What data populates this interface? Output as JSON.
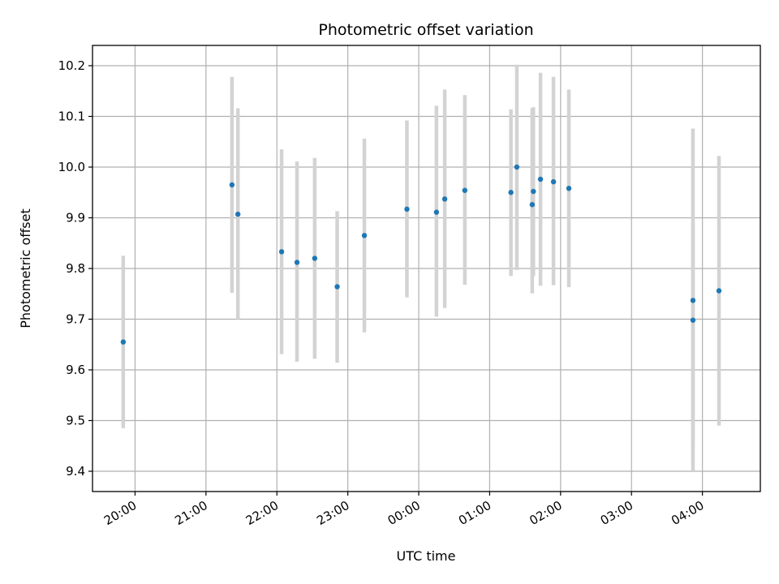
{
  "chart_data": {
    "type": "scatter",
    "title": "Photometric offset variation",
    "xlabel": "UTC time",
    "ylabel": "Photometric offset",
    "grid": true,
    "colors": {
      "point": "#1f77b4",
      "errorbar": "#d3d3d3",
      "grid": "#b0b0b0"
    },
    "x_ticks": [
      "20:00",
      "21:00",
      "22:00",
      "23:00",
      "00:00",
      "01:00",
      "02:00",
      "03:00",
      "04:00"
    ],
    "y_ticks": [
      "9.4",
      "9.5",
      "9.6",
      "9.7",
      "9.8",
      "9.9",
      "10.0",
      "10.1",
      "10.2"
    ],
    "xlim": [
      "19:24",
      "04:49"
    ],
    "ylim": [
      9.36,
      10.24
    ],
    "points": [
      {
        "x": "19:50",
        "y": 9.655,
        "err_low": 9.485,
        "err_high": 9.825
      },
      {
        "x": "21:22",
        "y": 9.965,
        "err_low": 9.752,
        "err_high": 10.178
      },
      {
        "x": "21:27",
        "y": 9.907,
        "err_low": 9.7,
        "err_high": 10.116
      },
      {
        "x": "22:04",
        "y": 9.833,
        "err_low": 9.631,
        "err_high": 10.035
      },
      {
        "x": "22:17",
        "y": 9.812,
        "err_low": 9.616,
        "err_high": 10.011
      },
      {
        "x": "22:32",
        "y": 9.82,
        "err_low": 9.622,
        "err_high": 10.018
      },
      {
        "x": "22:51",
        "y": 9.764,
        "err_low": 9.614,
        "err_high": 9.913
      },
      {
        "x": "23:14",
        "y": 9.865,
        "err_low": 9.674,
        "err_high": 10.056
      },
      {
        "x": "23:50",
        "y": 9.917,
        "err_low": 9.743,
        "err_high": 10.092
      },
      {
        "x": "00:15",
        "y": 9.911,
        "err_low": 9.705,
        "err_high": 10.121
      },
      {
        "x": "00:22",
        "y": 9.937,
        "err_low": 9.722,
        "err_high": 10.153
      },
      {
        "x": "00:39",
        "y": 9.954,
        "err_low": 9.768,
        "err_high": 10.142
      },
      {
        "x": "01:18",
        "y": 9.95,
        "err_low": 9.785,
        "err_high": 10.114
      },
      {
        "x": "01:23",
        "y": 10.0,
        "err_low": 9.797,
        "err_high": 10.202
      },
      {
        "x": "01:36",
        "y": 9.926,
        "err_low": 9.751,
        "err_high": 10.116
      },
      {
        "x": "01:37",
        "y": 9.952,
        "err_low": 9.785,
        "err_high": 10.118
      },
      {
        "x": "01:43",
        "y": 9.976,
        "err_low": 9.766,
        "err_high": 10.186
      },
      {
        "x": "01:54",
        "y": 9.971,
        "err_low": 9.767,
        "err_high": 10.178
      },
      {
        "x": "02:07",
        "y": 9.958,
        "err_low": 9.763,
        "err_high": 10.153
      },
      {
        "x": "03:52",
        "y": 9.698,
        "err_low": 9.4,
        "err_high": 9.89
      },
      {
        "x": "03:52",
        "y": 9.737,
        "err_low": 9.45,
        "err_high": 10.076
      },
      {
        "x": "04:14",
        "y": 9.756,
        "err_low": 9.49,
        "err_high": 10.022
      }
    ]
  }
}
